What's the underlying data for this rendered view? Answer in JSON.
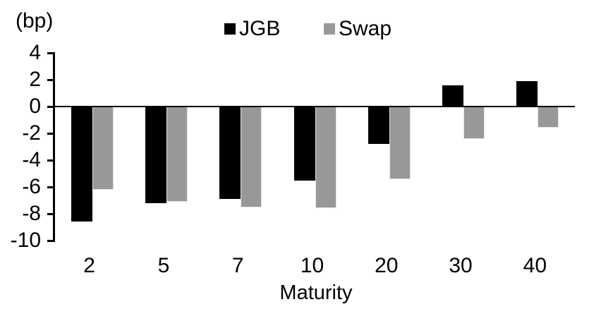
{
  "chart_data": {
    "type": "bar",
    "title": "",
    "unit_label": "(bp)",
    "xlabel": "Maturity",
    "categories": [
      "2",
      "5",
      "7",
      "10",
      "20",
      "30",
      "40"
    ],
    "series": [
      {
        "name": "JGB",
        "color": "#000000",
        "values": [
          -8.6,
          -7.2,
          -6.9,
          -5.5,
          -2.8,
          1.6,
          1.9
        ]
      },
      {
        "name": "Swap",
        "color": "#989898",
        "values": [
          -6.2,
          -7.1,
          -7.5,
          -7.6,
          -5.4,
          -2.4,
          -1.6
        ]
      }
    ],
    "y_axis": {
      "min": -10,
      "max": 4,
      "step": 2,
      "ticks": [
        4,
        2,
        0,
        -2,
        -4,
        -6,
        -8,
        -10
      ]
    },
    "legend_position": "top-center",
    "grid": false,
    "axis_color": "#000000",
    "background_color": "#ffffff"
  }
}
